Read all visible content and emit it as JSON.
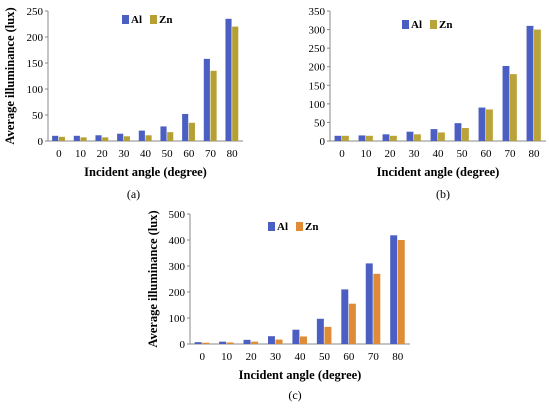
{
  "colors": {
    "al": "#4a5fc1",
    "zn_a": "#b5a033",
    "zn_b": "#b9a33a",
    "zn_c": "#e08b36"
  },
  "chart_data": [
    {
      "type": "bar",
      "caption": "(a)",
      "categories": [
        "0",
        "10",
        "20",
        "30",
        "40",
        "50",
        "60",
        "70",
        "80"
      ],
      "series": [
        {
          "name": "Al",
          "color": "#4a5fc1",
          "values": [
            10,
            10,
            11,
            14,
            20,
            28,
            52,
            158,
            235
          ]
        },
        {
          "name": "Zn",
          "color": "#b5a033",
          "values": [
            8,
            7,
            7,
            9,
            11,
            17,
            35,
            135,
            220
          ]
        }
      ],
      "xlabel": "Incident angle (degree)",
      "ylabel": "Average illuminance (lux)",
      "ylim": [
        0,
        250
      ],
      "yticks": [
        "0",
        "50",
        "100",
        "150",
        "200",
        "250"
      ],
      "legend": "top-center"
    },
    {
      "type": "bar",
      "caption": "(b)",
      "categories": [
        "0",
        "10",
        "20",
        "30",
        "40",
        "50",
        "60",
        "70",
        "80"
      ],
      "series": [
        {
          "name": "Al",
          "color": "#4a5fc1",
          "values": [
            14,
            15,
            18,
            25,
            32,
            48,
            90,
            202,
            310
          ]
        },
        {
          "name": "Zn",
          "color": "#b9a33a",
          "values": [
            14,
            14,
            14,
            18,
            23,
            35,
            85,
            180,
            300
          ]
        }
      ],
      "xlabel": "Incident angle (degree)",
      "ylabel": "",
      "ylim": [
        0,
        350
      ],
      "yticks": [
        "0",
        "50",
        "100",
        "150",
        "200",
        "250",
        "300",
        "350"
      ],
      "legend": "top-center"
    },
    {
      "type": "bar",
      "caption": "(c)",
      "categories": [
        "0",
        "10",
        "20",
        "30",
        "40",
        "50",
        "60",
        "70",
        "80"
      ],
      "series": [
        {
          "name": "Al",
          "color": "#4a5fc1",
          "values": [
            7,
            9,
            16,
            30,
            55,
            97,
            210,
            310,
            418
          ]
        },
        {
          "name": "Zn",
          "color": "#e08b36",
          "values": [
            5,
            6,
            9,
            17,
            29,
            66,
            155,
            270,
            400
          ]
        }
      ],
      "xlabel": "Incident angle (degree)",
      "ylabel": "Average illuminance (lux)",
      "ylim": [
        0,
        500
      ],
      "yticks": [
        "0",
        "100",
        "200",
        "300",
        "400",
        "500"
      ],
      "legend": "top-center"
    }
  ]
}
